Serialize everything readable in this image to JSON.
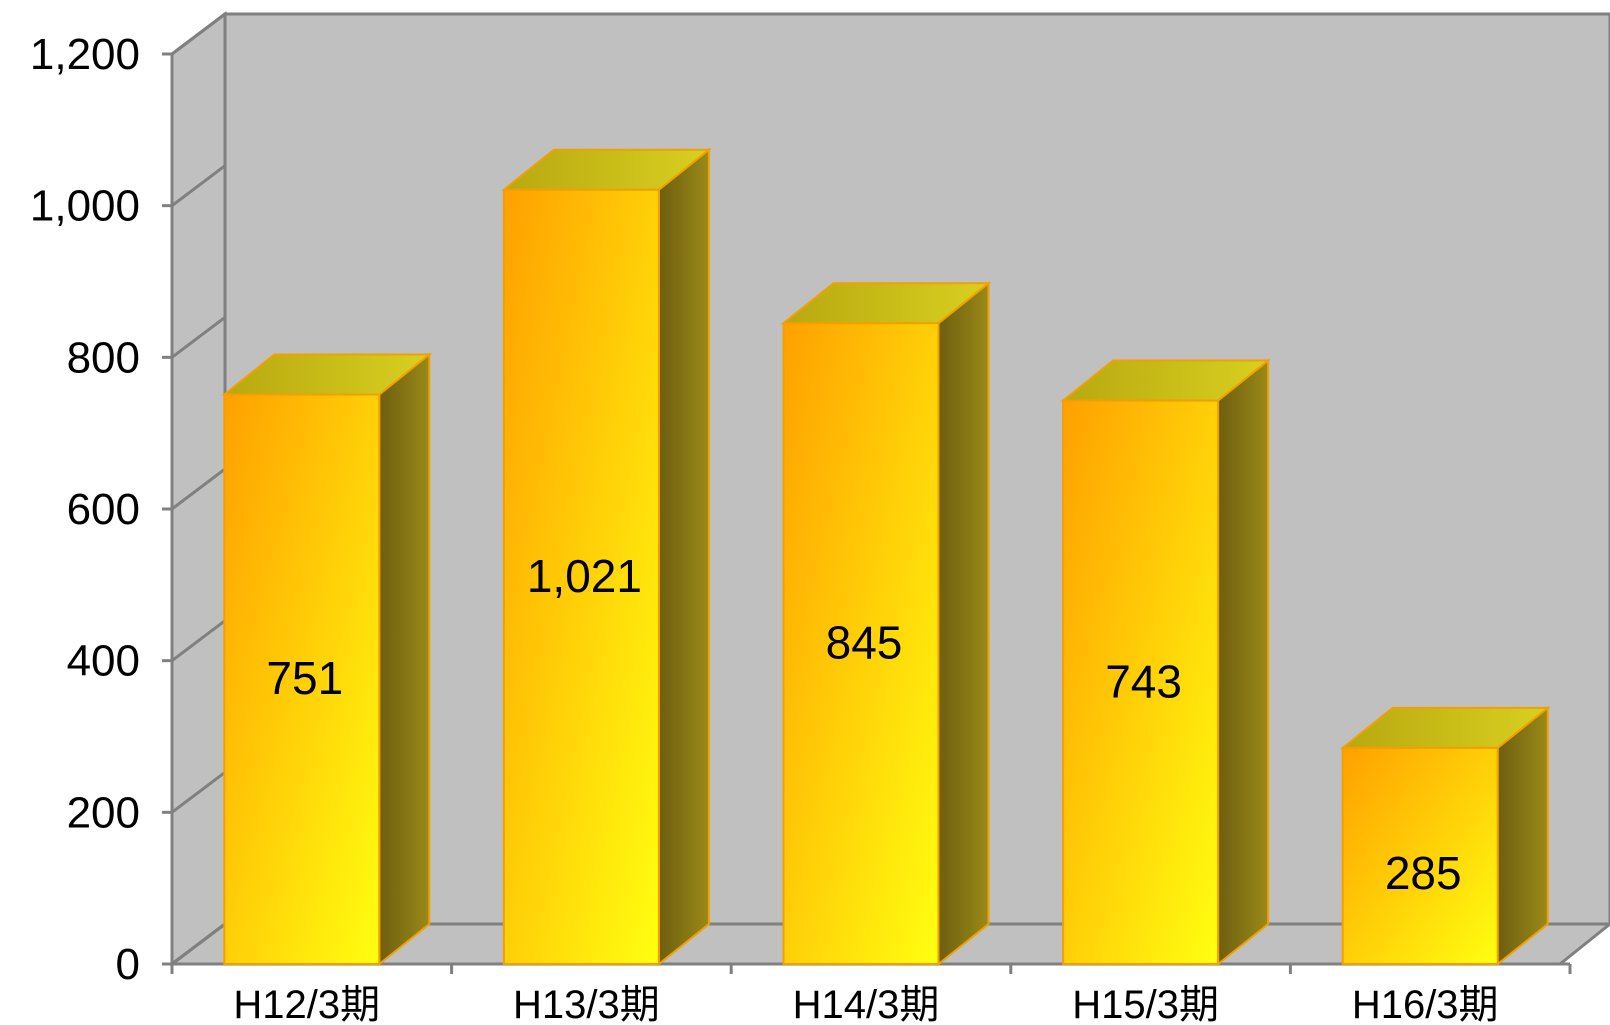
{
  "chart_data": {
    "type": "bar",
    "categories": [
      "H12/3期",
      "H13/3期",
      "H14/3期",
      "H15/3期",
      "H16/3期"
    ],
    "values": [
      751,
      1021,
      845,
      743,
      285
    ],
    "data_labels": [
      "751",
      "1,021",
      "845",
      "743",
      "285"
    ],
    "ylim": [
      0,
      1200
    ],
    "yticks": [
      0,
      200,
      400,
      600,
      800,
      1000,
      1200
    ],
    "ytick_labels": [
      "0",
      "200",
      "400",
      "600",
      "800",
      "1,000",
      "1,200"
    ],
    "grid": false,
    "style": "3d-column",
    "colors": {
      "bar_front_start": "#FFA000",
      "bar_front_end": "#FFFF10",
      "bar_top": "#C8C010",
      "bar_side": "#8A7A10",
      "bar_edge": "#F0A000",
      "plot_background": "#C0C0C0",
      "axis_line": "#808080"
    }
  }
}
